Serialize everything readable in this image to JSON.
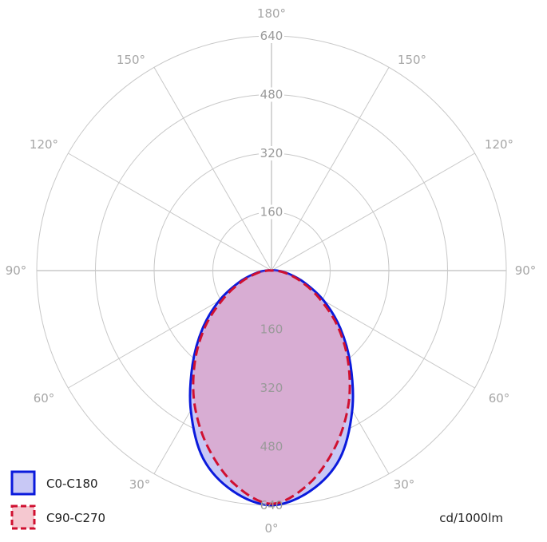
{
  "chart_data": {
    "type": "polar",
    "units": "cd/1000lm",
    "radial_ticks": [
      "160",
      "320",
      "480",
      "640"
    ],
    "radial_max": 640,
    "angle_labels": {
      "top": "180°",
      "bottom": "0°",
      "left": [
        "150°",
        "120°",
        "90°",
        "60°",
        "30°"
      ],
      "right": [
        "150°",
        "120°",
        "90°",
        "60°",
        "30°"
      ]
    },
    "angles_deg": [
      0,
      10,
      20,
      30,
      40,
      50,
      60,
      70,
      80,
      90,
      100
    ],
    "series": [
      {
        "name": "C0-C180",
        "stroke": "#0a1adc",
        "fill": "#c8c8f5",
        "dash": "solid",
        "values": [
          640,
          610,
          545,
          440,
          335,
          245,
          165,
          95,
          45,
          15,
          0
        ]
      },
      {
        "name": "C90-C270",
        "stroke": "#d01030",
        "fill": "rgba(235,140,170,0.45)",
        "dash": "dashed",
        "values": [
          636,
          590,
          510,
          420,
          325,
          235,
          150,
          85,
          40,
          12,
          0
        ]
      }
    ]
  }
}
